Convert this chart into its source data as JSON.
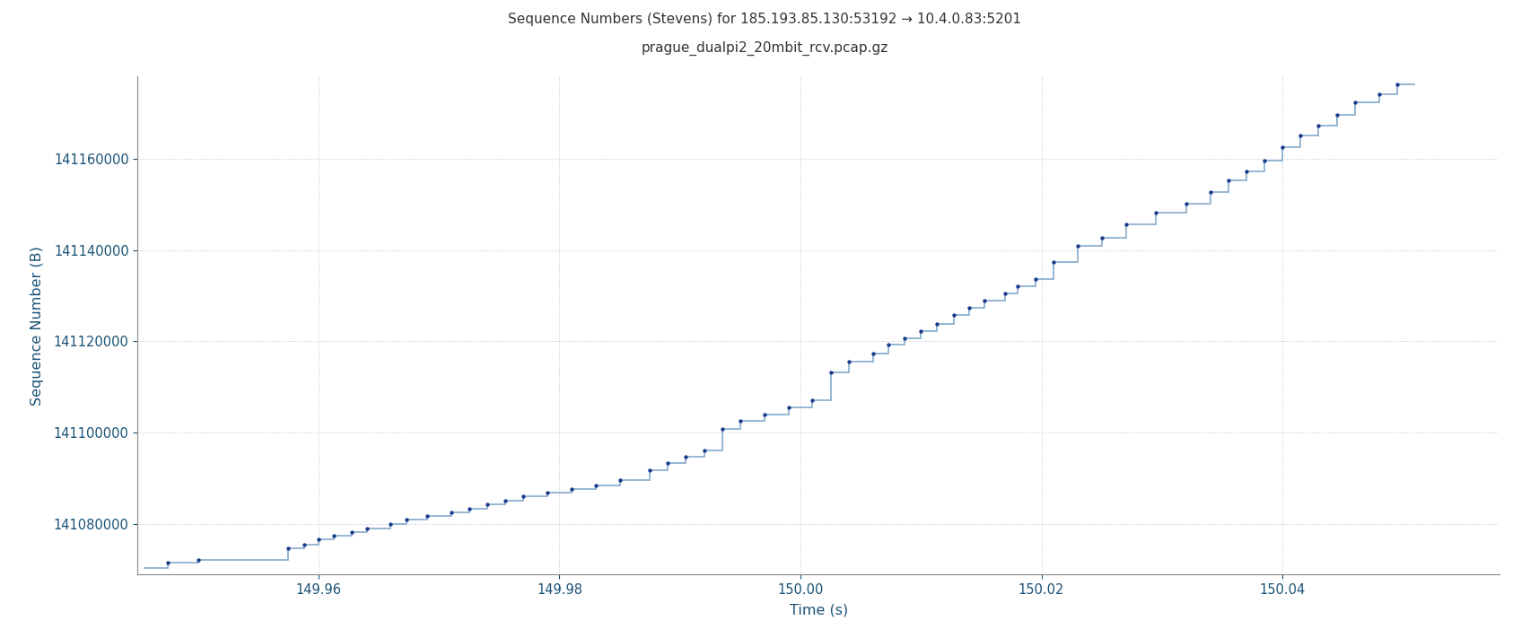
{
  "title_line1": "Sequence Numbers (Stevens) for 185.193.85.130:53192 → 10.4.0.83:5201",
  "title_line2": "prague_dualpi2_20mbit_rcv.pcap.gz",
  "xlabel": "Time (s)",
  "ylabel": "Sequence Number (B)",
  "title_color": "#333333",
  "axis_label_color": "#1a5276",
  "tick_color": "#1a5276",
  "line_color": "#85aacc",
  "dot_color": "#1a3a8a",
  "background_color": "#ffffff",
  "grid_color": "#aaaacc",
  "xlim": [
    149.945,
    150.058
  ],
  "ylim": [
    141069000,
    141178000
  ],
  "xticks": [
    149.96,
    149.98,
    150.0,
    150.02,
    150.04
  ],
  "yticks": [
    141080000,
    141100000,
    141120000,
    141140000,
    141160000
  ],
  "steps": [
    [
      149.9455,
      141070400
    ],
    [
      149.9475,
      141070400
    ],
    [
      149.9475,
      141071500
    ],
    [
      149.95,
      141071500
    ],
    [
      149.95,
      141072200
    ],
    [
      149.9575,
      141072200
    ],
    [
      149.9575,
      141074600
    ],
    [
      149.9588,
      141074600
    ],
    [
      149.9588,
      141075500
    ],
    [
      149.96,
      141075500
    ],
    [
      149.96,
      141076600
    ],
    [
      149.9613,
      141076600
    ],
    [
      149.9613,
      141077400
    ],
    [
      149.9628,
      141077400
    ],
    [
      149.9628,
      141078300
    ],
    [
      149.964,
      141078300
    ],
    [
      149.964,
      141079100
    ],
    [
      149.966,
      141079100
    ],
    [
      149.966,
      141080000
    ],
    [
      149.9673,
      141080000
    ],
    [
      149.9673,
      141080900
    ],
    [
      149.969,
      141080900
    ],
    [
      149.969,
      141081700
    ],
    [
      149.971,
      141081700
    ],
    [
      149.971,
      141082600
    ],
    [
      149.9725,
      141082600
    ],
    [
      149.9725,
      141083400
    ],
    [
      149.974,
      141083400
    ],
    [
      149.974,
      141084300
    ],
    [
      149.9755,
      141084300
    ],
    [
      149.9755,
      141085100
    ],
    [
      149.977,
      141085100
    ],
    [
      149.977,
      141086000
    ],
    [
      149.979,
      141086000
    ],
    [
      149.979,
      141086800
    ],
    [
      149.981,
      141086800
    ],
    [
      149.981,
      141087700
    ],
    [
      149.983,
      141087700
    ],
    [
      149.983,
      141088500
    ],
    [
      149.985,
      141088500
    ],
    [
      149.985,
      141089600
    ],
    [
      149.9875,
      141089600
    ],
    [
      149.9875,
      141091800
    ],
    [
      149.989,
      141091800
    ],
    [
      149.989,
      141093300
    ],
    [
      149.9905,
      141093300
    ],
    [
      149.9905,
      141094700
    ],
    [
      149.992,
      141094700
    ],
    [
      149.992,
      141096200
    ],
    [
      149.9935,
      141096200
    ],
    [
      149.9935,
      141100900
    ],
    [
      149.995,
      141100900
    ],
    [
      149.995,
      141102500
    ],
    [
      149.997,
      141102500
    ],
    [
      149.997,
      141104000
    ],
    [
      149.999,
      141104000
    ],
    [
      149.999,
      141105600
    ],
    [
      150.001,
      141105600
    ],
    [
      150.001,
      141107200
    ],
    [
      150.0025,
      141107200
    ],
    [
      150.0025,
      141113200
    ],
    [
      150.004,
      141113200
    ],
    [
      150.004,
      141115600
    ],
    [
      150.006,
      141115600
    ],
    [
      150.006,
      141117400
    ],
    [
      150.0073,
      141117400
    ],
    [
      150.0073,
      141119200
    ],
    [
      150.0086,
      141119200
    ],
    [
      150.0086,
      141120700
    ],
    [
      150.01,
      141120700
    ],
    [
      150.01,
      141122300
    ],
    [
      150.0113,
      141122300
    ],
    [
      150.0113,
      141123900
    ],
    [
      150.0127,
      141123900
    ],
    [
      150.0127,
      141125700
    ],
    [
      150.014,
      141125700
    ],
    [
      150.014,
      141127300
    ],
    [
      150.0153,
      141127300
    ],
    [
      150.0153,
      141128900
    ],
    [
      150.017,
      141128900
    ],
    [
      150.017,
      141130500
    ],
    [
      150.018,
      141130500
    ],
    [
      150.018,
      141132100
    ],
    [
      150.0195,
      141132100
    ],
    [
      150.0195,
      141133700
    ],
    [
      150.021,
      141133700
    ],
    [
      150.021,
      141137400
    ],
    [
      150.023,
      141137400
    ],
    [
      150.023,
      141140900
    ],
    [
      150.025,
      141140900
    ],
    [
      150.025,
      141142600
    ],
    [
      150.027,
      141142600
    ],
    [
      150.027,
      141145700
    ],
    [
      150.0295,
      141145700
    ],
    [
      150.0295,
      141148200
    ],
    [
      150.032,
      141148200
    ],
    [
      150.032,
      141150200
    ],
    [
      150.034,
      141150200
    ],
    [
      150.034,
      141152800
    ],
    [
      150.0355,
      141152800
    ],
    [
      150.0355,
      141155300
    ],
    [
      150.037,
      141155300
    ],
    [
      150.037,
      141157300
    ],
    [
      150.0385,
      141157300
    ],
    [
      150.0385,
      141159500
    ],
    [
      150.04,
      141159500
    ],
    [
      150.04,
      141162600
    ],
    [
      150.0415,
      141162600
    ],
    [
      150.0415,
      141165100
    ],
    [
      150.043,
      141165100
    ],
    [
      150.043,
      141167200
    ],
    [
      150.0445,
      141167200
    ],
    [
      150.0445,
      141169700
    ],
    [
      150.046,
      141169700
    ],
    [
      150.046,
      141172400
    ],
    [
      150.048,
      141172400
    ],
    [
      150.048,
      141174200
    ],
    [
      150.0495,
      141174200
    ],
    [
      150.0495,
      141176200
    ],
    [
      150.051,
      141176200
    ],
    [
      150.051,
      141176200
    ]
  ],
  "dot_positions": [
    [
      149.9475,
      141071500
    ],
    [
      149.95,
      141072200
    ],
    [
      149.9575,
      141074600
    ],
    [
      149.9588,
      141075500
    ],
    [
      149.96,
      141076600
    ],
    [
      149.9613,
      141077400
    ],
    [
      149.9628,
      141078300
    ],
    [
      149.964,
      141079100
    ],
    [
      149.966,
      141080000
    ],
    [
      149.9673,
      141080900
    ],
    [
      149.969,
      141081700
    ],
    [
      149.971,
      141082600
    ],
    [
      149.9725,
      141083400
    ],
    [
      149.974,
      141084300
    ],
    [
      149.9755,
      141085100
    ],
    [
      149.977,
      141086000
    ],
    [
      149.979,
      141086800
    ],
    [
      149.981,
      141087700
    ],
    [
      149.983,
      141088500
    ],
    [
      149.985,
      141089600
    ],
    [
      149.9875,
      141091800
    ],
    [
      149.989,
      141093300
    ],
    [
      149.9905,
      141094700
    ],
    [
      149.992,
      141096200
    ],
    [
      149.9935,
      141100900
    ],
    [
      149.995,
      141102500
    ],
    [
      149.997,
      141104000
    ],
    [
      149.999,
      141105600
    ],
    [
      150.001,
      141107200
    ],
    [
      150.0025,
      141113200
    ],
    [
      150.004,
      141115600
    ],
    [
      150.006,
      141117400
    ],
    [
      150.0073,
      141119200
    ],
    [
      150.0086,
      141120700
    ],
    [
      150.01,
      141122300
    ],
    [
      150.0113,
      141123900
    ],
    [
      150.0127,
      141125700
    ],
    [
      150.014,
      141127300
    ],
    [
      150.0153,
      141128900
    ],
    [
      150.017,
      141130500
    ],
    [
      150.018,
      141132100
    ],
    [
      150.0195,
      141133700
    ],
    [
      150.021,
      141137400
    ],
    [
      150.023,
      141140900
    ],
    [
      150.025,
      141142600
    ],
    [
      150.027,
      141145700
    ],
    [
      150.0295,
      141148200
    ],
    [
      150.032,
      141150200
    ],
    [
      150.034,
      141152800
    ],
    [
      150.0355,
      141155300
    ],
    [
      150.037,
      141157300
    ],
    [
      150.0385,
      141159500
    ],
    [
      150.04,
      141162600
    ],
    [
      150.0415,
      141165100
    ],
    [
      150.043,
      141167200
    ],
    [
      150.0445,
      141169700
    ],
    [
      150.046,
      141172400
    ],
    [
      150.048,
      141174200
    ],
    [
      150.0495,
      141176200
    ]
  ]
}
